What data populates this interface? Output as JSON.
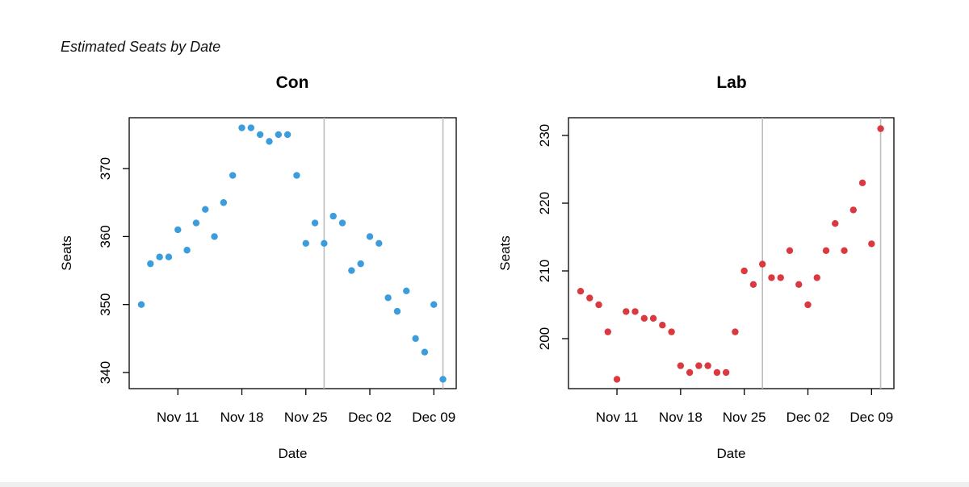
{
  "figure": {
    "title": "Estimated Seats by Date"
  },
  "chart_data": [
    {
      "type": "scatter",
      "title": "Con",
      "xlabel": "Date",
      "ylabel": "Seats",
      "color": "#3b9ddb",
      "x_ticks": [
        "Nov 11",
        "Nov 18",
        "Nov 25",
        "Dec 02",
        "Dec 09"
      ],
      "y_ticks": [
        340,
        350,
        360,
        370
      ],
      "ylim": [
        337.5,
        376.5
      ],
      "reference_lines": [
        "2019-11-27",
        "2019-12-10"
      ],
      "points": [
        {
          "x": "2019-11-07",
          "y": 350
        },
        {
          "x": "2019-11-08",
          "y": 356
        },
        {
          "x": "2019-11-09",
          "y": 357
        },
        {
          "x": "2019-11-10",
          "y": 357
        },
        {
          "x": "2019-11-11",
          "y": 361
        },
        {
          "x": "2019-11-12",
          "y": 358
        },
        {
          "x": "2019-11-13",
          "y": 362
        },
        {
          "x": "2019-11-14",
          "y": 364
        },
        {
          "x": "2019-11-15",
          "y": 360
        },
        {
          "x": "2019-11-16",
          "y": 365
        },
        {
          "x": "2019-11-17",
          "y": 369
        },
        {
          "x": "2019-11-18",
          "y": 376
        },
        {
          "x": "2019-11-19",
          "y": 376
        },
        {
          "x": "2019-11-20",
          "y": 375
        },
        {
          "x": "2019-11-21",
          "y": 374
        },
        {
          "x": "2019-11-22",
          "y": 375
        },
        {
          "x": "2019-11-23",
          "y": 375
        },
        {
          "x": "2019-11-24",
          "y": 369
        },
        {
          "x": "2019-11-25",
          "y": 359
        },
        {
          "x": "2019-11-26",
          "y": 362
        },
        {
          "x": "2019-11-27",
          "y": 359
        },
        {
          "x": "2019-11-28",
          "y": 363
        },
        {
          "x": "2019-11-29",
          "y": 362
        },
        {
          "x": "2019-11-30",
          "y": 355
        },
        {
          "x": "2019-12-01",
          "y": 356
        },
        {
          "x": "2019-12-02",
          "y": 360
        },
        {
          "x": "2019-12-03",
          "y": 359
        },
        {
          "x": "2019-12-04",
          "y": 351
        },
        {
          "x": "2019-12-05",
          "y": 349
        },
        {
          "x": "2019-12-06",
          "y": 352
        },
        {
          "x": "2019-12-07",
          "y": 345
        },
        {
          "x": "2019-12-08",
          "y": 343
        },
        {
          "x": "2019-12-09",
          "y": 350
        },
        {
          "x": "2019-12-10",
          "y": 339
        }
      ]
    },
    {
      "type": "scatter",
      "title": "Lab",
      "xlabel": "Date",
      "ylabel": "Seats",
      "color": "#d9393f",
      "x_ticks": [
        "Nov 11",
        "Nov 18",
        "Nov 25",
        "Dec 02",
        "Dec 09"
      ],
      "y_ticks": [
        200,
        210,
        220,
        230
      ],
      "ylim": [
        192.5,
        232
      ],
      "reference_lines": [
        "2019-11-27",
        "2019-12-10"
      ],
      "points": [
        {
          "x": "2019-11-07",
          "y": 207
        },
        {
          "x": "2019-11-08",
          "y": 206
        },
        {
          "x": "2019-11-09",
          "y": 205
        },
        {
          "x": "2019-11-10",
          "y": 201
        },
        {
          "x": "2019-11-11",
          "y": 194
        },
        {
          "x": "2019-11-12",
          "y": 204
        },
        {
          "x": "2019-11-13",
          "y": 204
        },
        {
          "x": "2019-11-14",
          "y": 203
        },
        {
          "x": "2019-11-15",
          "y": 203
        },
        {
          "x": "2019-11-16",
          "y": 202
        },
        {
          "x": "2019-11-17",
          "y": 201
        },
        {
          "x": "2019-11-18",
          "y": 196
        },
        {
          "x": "2019-11-19",
          "y": 195
        },
        {
          "x": "2019-11-20",
          "y": 196
        },
        {
          "x": "2019-11-21",
          "y": 196
        },
        {
          "x": "2019-11-22",
          "y": 195
        },
        {
          "x": "2019-11-23",
          "y": 195
        },
        {
          "x": "2019-11-24",
          "y": 201
        },
        {
          "x": "2019-11-25",
          "y": 210
        },
        {
          "x": "2019-11-26",
          "y": 208
        },
        {
          "x": "2019-11-27",
          "y": 211
        },
        {
          "x": "2019-11-28",
          "y": 209
        },
        {
          "x": "2019-11-29",
          "y": 209
        },
        {
          "x": "2019-11-30",
          "y": 213
        },
        {
          "x": "2019-12-01",
          "y": 208
        },
        {
          "x": "2019-12-02",
          "y": 205
        },
        {
          "x": "2019-12-03",
          "y": 209
        },
        {
          "x": "2019-12-04",
          "y": 213
        },
        {
          "x": "2019-12-05",
          "y": 217
        },
        {
          "x": "2019-12-06",
          "y": 213
        },
        {
          "x": "2019-12-07",
          "y": 219
        },
        {
          "x": "2019-12-08",
          "y": 223
        },
        {
          "x": "2019-12-09",
          "y": 214
        },
        {
          "x": "2019-12-10",
          "y": 231
        }
      ]
    }
  ]
}
